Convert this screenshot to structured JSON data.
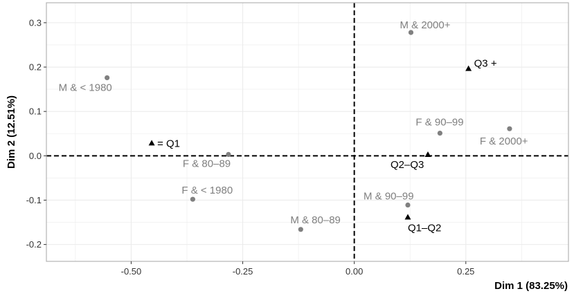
{
  "chart_data": {
    "type": "scatter",
    "title": "",
    "xlabel": "Dim 1 (83.25%)",
    "ylabel": "Dim 2 (12.51%)",
    "xlim": [
      -0.69,
      0.48
    ],
    "ylim": [
      -0.238,
      0.345
    ],
    "x_ticks": [
      -0.5,
      -0.25,
      0.0,
      0.25
    ],
    "x_tick_labels": [
      "-0.50",
      "-0.25",
      "0.00",
      "0.25"
    ],
    "y_ticks": [
      -0.2,
      -0.1,
      0.0,
      0.1,
      0.2,
      0.3
    ],
    "y_tick_labels": [
      "-0.2",
      "-0.1",
      "0.0",
      "0.1",
      "0.2",
      "0.3"
    ],
    "grid": true,
    "reference_lines": {
      "x": 0,
      "y": 0,
      "style": "dashed"
    },
    "colors": {
      "circle_points": "#808080",
      "triangle_points": "#000000",
      "grid": "#ebebeb",
      "panel_border": "#b3b3b3"
    },
    "series": [
      {
        "marker": "circle",
        "points": [
          {
            "label": "M & < 1980",
            "x": -0.554,
            "y": 0.176
          },
          {
            "label": "M & 2000+",
            "x": 0.127,
            "y": 0.278
          },
          {
            "label": "F & 90–99",
            "x": 0.192,
            "y": 0.051
          },
          {
            "label": "F & 2000+",
            "x": 0.348,
            "y": 0.061
          },
          {
            "label": "F & 80–89",
            "x": -0.282,
            "y": 0.003
          },
          {
            "label": "F & < 1980",
            "x": -0.362,
            "y": -0.098
          },
          {
            "label": "M & 90–99",
            "x": 0.12,
            "y": -0.111
          },
          {
            "label": "M & 80–89",
            "x": -0.12,
            "y": -0.166
          }
        ]
      },
      {
        "marker": "triangle",
        "points": [
          {
            "label": "= Q1",
            "x": -0.454,
            "y": 0.028
          },
          {
            "label": "Q3 +",
            "x": 0.256,
            "y": 0.196
          },
          {
            "label": "Q2–Q3",
            "x": 0.165,
            "y": 0.002
          },
          {
            "label": "Q1–Q2",
            "x": 0.12,
            "y": -0.139
          }
        ]
      }
    ]
  }
}
